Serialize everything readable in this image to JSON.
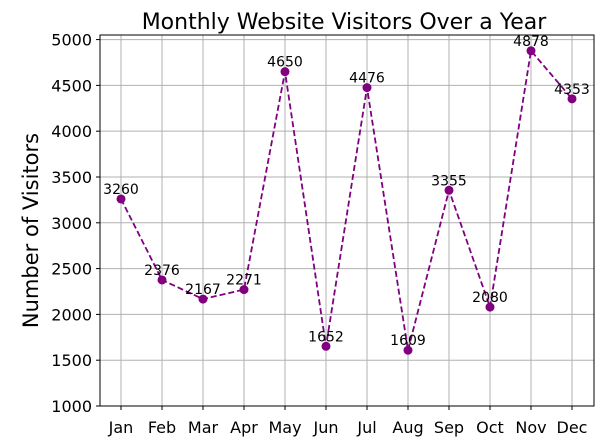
{
  "chart_data": {
    "type": "line",
    "title": "Monthly Website Visitors Over a Year",
    "xlabel": "",
    "ylabel": "Number of Visitors",
    "categories": [
      "Jan",
      "Feb",
      "Mar",
      "Apr",
      "May",
      "Jun",
      "Jul",
      "Aug",
      "Sep",
      "Oct",
      "Nov",
      "Dec"
    ],
    "series": [
      {
        "values": [
          3260,
          2376,
          2167,
          2271,
          4650,
          1652,
          4476,
          1609,
          3355,
          2080,
          4878,
          4353
        ],
        "color": "#800080"
      }
    ],
    "data_labels": [
      "3260",
      "2376",
      "2167",
      "2271",
      "4650",
      "1652",
      "4476",
      "1609",
      "3355",
      "2080",
      "4878",
      "4353"
    ],
    "yticks": [
      "1000",
      "1500",
      "2000",
      "2500",
      "3000",
      "3500",
      "4000",
      "4500",
      "5000"
    ],
    "ylim": [
      1000,
      5050
    ],
    "grid": true,
    "line_style": "dashed",
    "marker": "circle"
  }
}
